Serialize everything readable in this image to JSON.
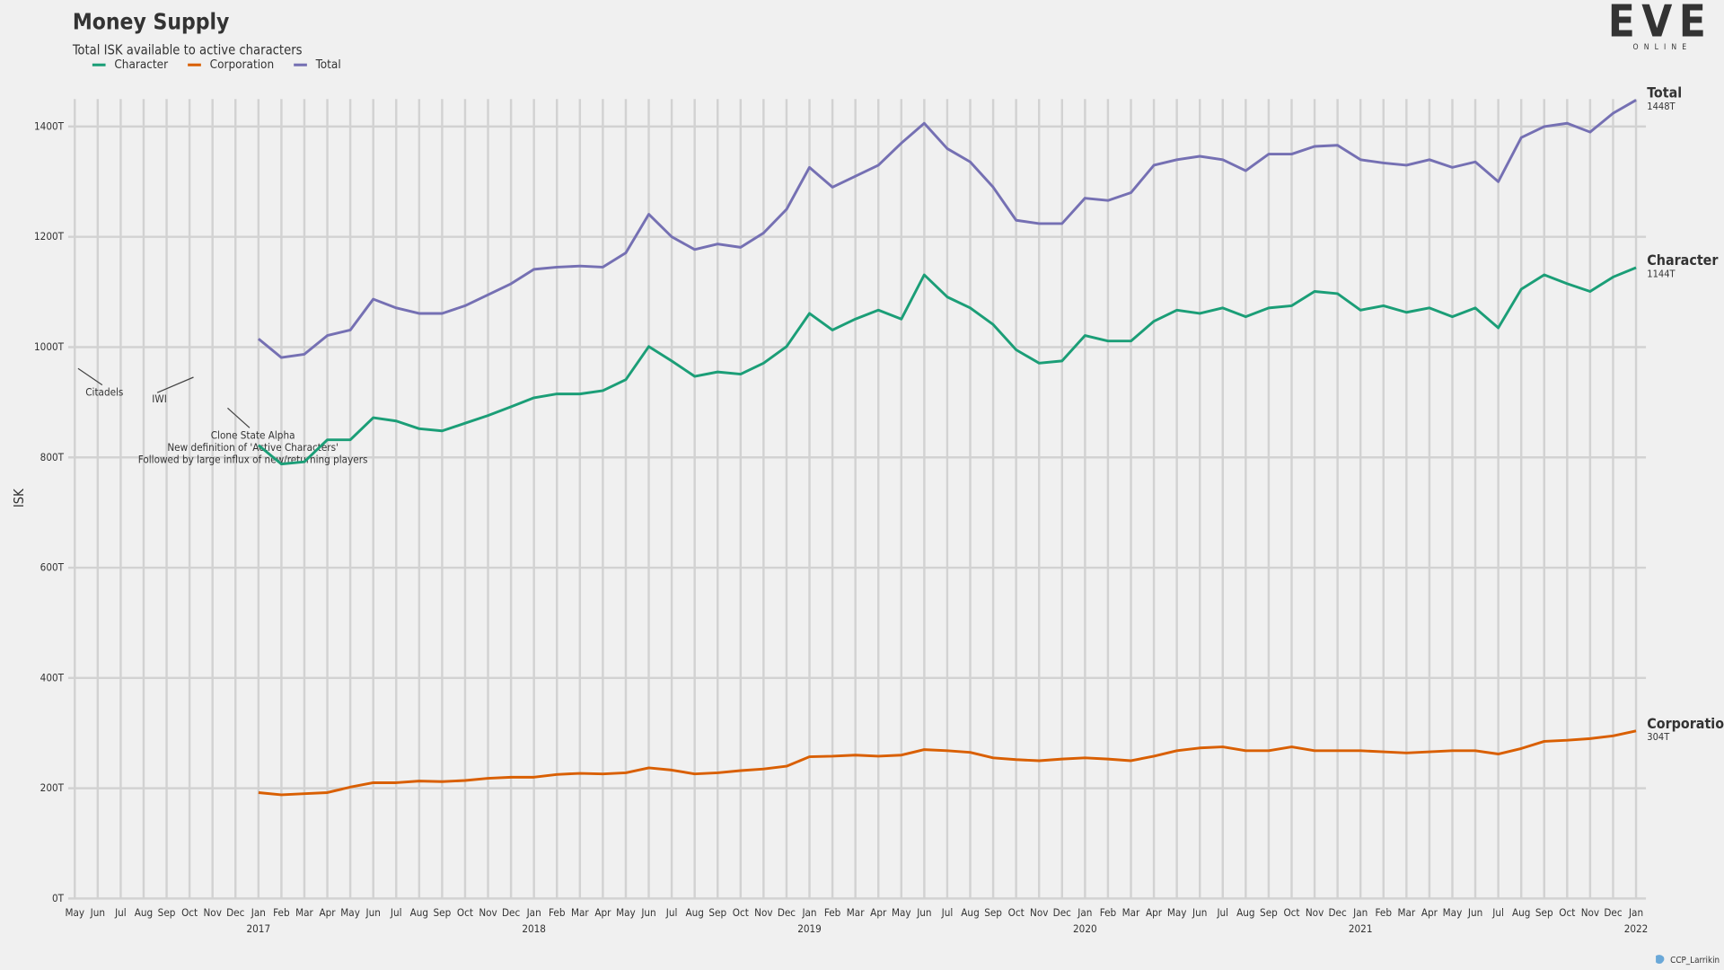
{
  "chart_data": {
    "type": "line",
    "title": "Money Supply",
    "subtitle": "Total ISK available to active characters",
    "ylabel": "ISK",
    "logo": "EVE",
    "logo_sub": "ONLINE",
    "credit": "CCP_Larrikin",
    "legend": "top-left",
    "grid": true,
    "ylim": [
      0,
      1450
    ],
    "yticks": [
      {
        "value": 0,
        "label": "0T"
      },
      {
        "value": 200,
        "label": "200T"
      },
      {
        "value": 400,
        "label": "400T"
      },
      {
        "value": 600,
        "label": "600T"
      },
      {
        "value": 800,
        "label": "800T"
      },
      {
        "value": 1000,
        "label": "1000T"
      },
      {
        "value": 1200,
        "label": "1200T"
      },
      {
        "value": 1400,
        "label": "1400T"
      }
    ],
    "xlim": [
      "2016-05",
      "2022-01"
    ],
    "xticks": [
      {
        "value": "2016-05",
        "label": "May"
      },
      {
        "value": "2016-06",
        "label": "Jun"
      },
      {
        "value": "2016-07",
        "label": "Jul"
      },
      {
        "value": "2016-08",
        "label": "Aug"
      },
      {
        "value": "2016-09",
        "label": "Sep"
      },
      {
        "value": "2016-10",
        "label": "Oct"
      },
      {
        "value": "2016-11",
        "label": "Nov"
      },
      {
        "value": "2016-12",
        "label": "Dec"
      },
      {
        "value": "2017-01",
        "label": "Jan"
      },
      {
        "value": "2017-02",
        "label": "Feb"
      },
      {
        "value": "2017-03",
        "label": "Mar"
      },
      {
        "value": "2017-04",
        "label": "Apr"
      },
      {
        "value": "2017-05",
        "label": "May"
      },
      {
        "value": "2017-06",
        "label": "Jun"
      },
      {
        "value": "2017-07",
        "label": "Jul"
      },
      {
        "value": "2017-08",
        "label": "Aug"
      },
      {
        "value": "2017-09",
        "label": "Sep"
      },
      {
        "value": "2017-10",
        "label": "Oct"
      },
      {
        "value": "2017-11",
        "label": "Nov"
      },
      {
        "value": "2017-12",
        "label": "Dec"
      },
      {
        "value": "2018-01",
        "label": "Jan"
      },
      {
        "value": "2018-02",
        "label": "Feb"
      },
      {
        "value": "2018-03",
        "label": "Mar"
      },
      {
        "value": "2018-04",
        "label": "Apr"
      },
      {
        "value": "2018-05",
        "label": "May"
      },
      {
        "value": "2018-06",
        "label": "Jun"
      },
      {
        "value": "2018-07",
        "label": "Jul"
      },
      {
        "value": "2018-08",
        "label": "Aug"
      },
      {
        "value": "2018-09",
        "label": "Sep"
      },
      {
        "value": "2018-10",
        "label": "Oct"
      },
      {
        "value": "2018-11",
        "label": "Nov"
      },
      {
        "value": "2018-12",
        "label": "Dec"
      },
      {
        "value": "2019-01",
        "label": "Jan"
      },
      {
        "value": "2019-02",
        "label": "Feb"
      },
      {
        "value": "2019-03",
        "label": "Mar"
      },
      {
        "value": "2019-04",
        "label": "Apr"
      },
      {
        "value": "2019-05",
        "label": "May"
      },
      {
        "value": "2019-06",
        "label": "Jun"
      },
      {
        "value": "2019-07",
        "label": "Jul"
      },
      {
        "value": "2019-08",
        "label": "Aug"
      },
      {
        "value": "2019-09",
        "label": "Sep"
      },
      {
        "value": "2019-10",
        "label": "Oct"
      },
      {
        "value": "2019-11",
        "label": "Nov"
      },
      {
        "value": "2019-12",
        "label": "Dec"
      },
      {
        "value": "2020-01",
        "label": "Jan"
      },
      {
        "value": "2020-02",
        "label": "Feb"
      },
      {
        "value": "2020-03",
        "label": "Mar"
      },
      {
        "value": "2020-04",
        "label": "Apr"
      },
      {
        "value": "2020-05",
        "label": "May"
      },
      {
        "value": "2020-06",
        "label": "Jun"
      },
      {
        "value": "2020-07",
        "label": "Jul"
      },
      {
        "value": "2020-08",
        "label": "Aug"
      },
      {
        "value": "2020-09",
        "label": "Sep"
      },
      {
        "value": "2020-10",
        "label": "Oct"
      },
      {
        "value": "2020-11",
        "label": "Nov"
      },
      {
        "value": "2020-12",
        "label": "Dec"
      },
      {
        "value": "2021-01",
        "label": "Jan"
      },
      {
        "value": "2021-02",
        "label": "Feb"
      },
      {
        "value": "2021-03",
        "label": "Mar"
      },
      {
        "value": "2021-04",
        "label": "Apr"
      },
      {
        "value": "2021-05",
        "label": "May"
      },
      {
        "value": "2021-06",
        "label": "Jun"
      },
      {
        "value": "2021-07",
        "label": "Jul"
      },
      {
        "value": "2021-08",
        "label": "Aug"
      },
      {
        "value": "2021-09",
        "label": "Sep"
      },
      {
        "value": "2021-10",
        "label": "Oct"
      },
      {
        "value": "2021-11",
        "label": "Nov"
      },
      {
        "value": "2021-12",
        "label": "Dec"
      },
      {
        "value": "2022-01",
        "label": "Jan"
      }
    ],
    "year_ticks": [
      {
        "value": "2017-01",
        "label": "2017"
      },
      {
        "value": "2018-01",
        "label": "2018"
      },
      {
        "value": "2019-01",
        "label": "2019"
      },
      {
        "value": "2020-01",
        "label": "2020"
      },
      {
        "value": "2021-01",
        "label": "2021"
      },
      {
        "value": "2022-01",
        "label": "2022"
      }
    ],
    "annotations": [
      {
        "lines": [
          "Citadels"
        ]
      },
      {
        "lines": [
          "IWI"
        ]
      },
      {
        "lines": [
          "Clone State Alpha",
          "New definition of 'Active Characters'",
          "Followed by large influx of new/returning players"
        ]
      }
    ],
    "x": [
      "2017-01",
      "2017-02",
      "2017-03",
      "2017-04",
      "2017-05",
      "2017-06",
      "2017-07",
      "2017-08",
      "2017-09",
      "2017-10",
      "2017-11",
      "2017-12",
      "2018-01",
      "2018-02",
      "2018-03",
      "2018-04",
      "2018-05",
      "2018-06",
      "2018-07",
      "2018-08",
      "2018-09",
      "2018-10",
      "2018-11",
      "2018-12",
      "2019-01",
      "2019-02",
      "2019-03",
      "2019-04",
      "2019-05",
      "2019-06",
      "2019-07",
      "2019-08",
      "2019-09",
      "2019-10",
      "2019-11",
      "2019-12",
      "2020-01",
      "2020-02",
      "2020-03",
      "2020-04",
      "2020-05",
      "2020-06",
      "2020-07",
      "2020-08",
      "2020-09",
      "2020-10",
      "2020-11",
      "2020-12",
      "2021-01",
      "2021-02",
      "2021-03",
      "2021-04",
      "2021-05",
      "2021-06",
      "2021-07",
      "2021-08",
      "2021-09",
      "2021-10",
      "2021-11",
      "2021-12",
      "2022-01"
    ],
    "series": [
      {
        "name": "Character",
        "color": "#1b9e77",
        "last_label": "1144T",
        "values": [
          822,
          788,
          792,
          832,
          832,
          872,
          866,
          852,
          848,
          862,
          876,
          892,
          908,
          915,
          915,
          921,
          941,
          1001,
          975,
          947,
          955,
          951,
          971,
          1001,
          1061,
          1031,
          1051,
          1067,
          1051,
          1131,
          1091,
          1071,
          1041,
          995,
          971,
          975,
          1021,
          1011,
          1011,
          1047,
          1067,
          1061,
          1071,
          1055,
          1071,
          1075,
          1101,
          1097,
          1067,
          1075,
          1063,
          1071,
          1055,
          1071,
          1035,
          1105,
          1131,
          1115,
          1101,
          1127,
          1144
        ]
      },
      {
        "name": "Corporation",
        "color": "#d95f02",
        "last_label": "304T",
        "values": [
          192,
          188,
          190,
          192,
          202,
          210,
          210,
          213,
          212,
          214,
          218,
          220,
          220,
          225,
          227,
          226,
          228,
          237,
          233,
          226,
          228,
          232,
          235,
          240,
          257,
          258,
          260,
          258,
          260,
          270,
          268,
          265,
          255,
          252,
          250,
          253,
          255,
          253,
          250,
          258,
          268,
          273,
          275,
          268,
          268,
          275,
          268,
          268,
          268,
          266,
          264,
          266,
          268,
          268,
          262,
          272,
          285,
          287,
          290,
          295,
          304
        ]
      },
      {
        "name": "Total",
        "color": "#7570b3",
        "last_label": "1448T",
        "values": [
          1015,
          981,
          987,
          1021,
          1031,
          1087,
          1071,
          1061,
          1061,
          1075,
          1095,
          1115,
          1141,
          1145,
          1147,
          1145,
          1171,
          1241,
          1200,
          1177,
          1187,
          1181,
          1207,
          1250,
          1326,
          1290,
          1310,
          1330,
          1370,
          1406,
          1360,
          1336,
          1290,
          1230,
          1224,
          1224,
          1270,
          1266,
          1280,
          1330,
          1340,
          1346,
          1340,
          1320,
          1350,
          1350,
          1364,
          1366,
          1340,
          1334,
          1330,
          1340,
          1326,
          1336,
          1300,
          1380,
          1400,
          1406,
          1390,
          1424,
          1448
        ]
      }
    ]
  }
}
